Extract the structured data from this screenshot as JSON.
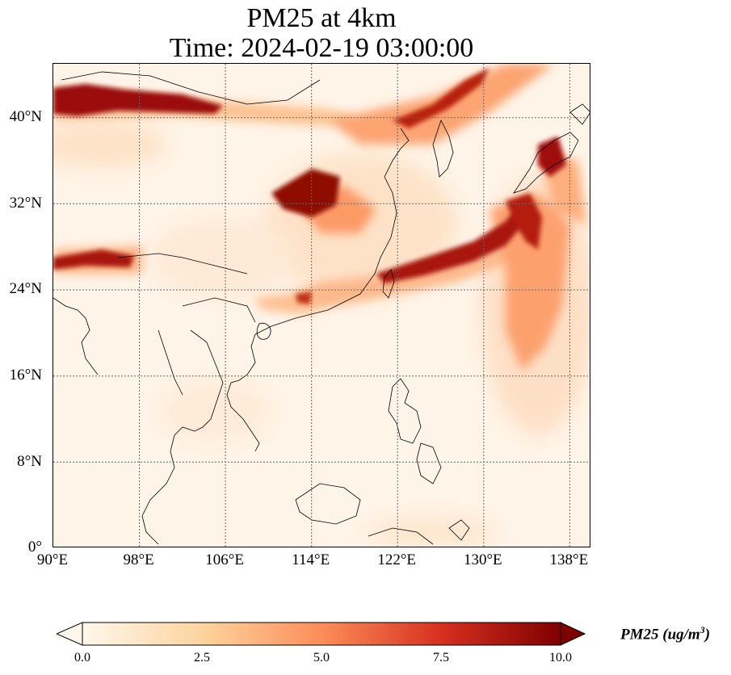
{
  "title": {
    "line1": "PM25 at 4km",
    "line2": "Time: 2024-02-19 03:00:00"
  },
  "map": {
    "projection": "PlateCarree",
    "lon_range": [
      90,
      140
    ],
    "lat_range": [
      0,
      45
    ],
    "gridlines": "dotted grey",
    "colormap": "OrRd",
    "lat_ticks": [
      "0°",
      "8°N",
      "16°N",
      "24°N",
      "32°N",
      "40°N"
    ],
    "lon_ticks": [
      "90°E",
      "98°E",
      "106°E",
      "114°E",
      "122°E",
      "130°E",
      "138°E"
    ]
  },
  "colorbar": {
    "label": "PM25 (ug/m",
    "label_sup": "3",
    "label_end": ")",
    "ticks": [
      "0.0",
      "2.5",
      "5.0",
      "7.5",
      "10.0"
    ],
    "range": [
      0,
      10
    ],
    "extend": "both",
    "colors": [
      "#fff7ec",
      "#fdd49e",
      "#fc8d59",
      "#d7301f",
      "#7f0000"
    ]
  }
}
